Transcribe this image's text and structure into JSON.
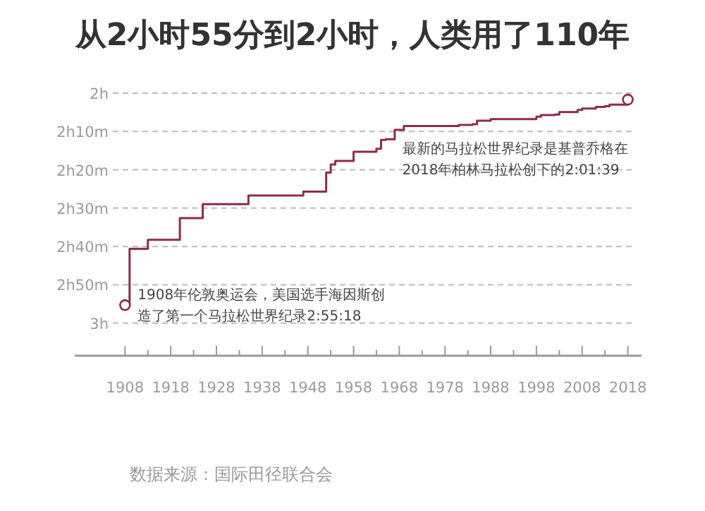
{
  "chart_data": {
    "type": "step",
    "title": "从2小时55分到2小时，人类用了110年",
    "x": [
      1908,
      1909,
      1913,
      1920,
      1925,
      1935,
      1947,
      1952,
      1953,
      1954,
      1958,
      1960,
      1963,
      1964,
      1965,
      1967,
      1969,
      1981,
      1984,
      1985,
      1988,
      1998,
      1999,
      2002,
      2003,
      2007,
      2008,
      2011,
      2013,
      2014,
      2018
    ],
    "series": [
      {
        "color": "#8c2d4a",
        "values": [
          2.922,
          2.677,
          2.638,
          2.543,
          2.483,
          2.445,
          2.428,
          2.345,
          2.31,
          2.295,
          2.255,
          2.255,
          2.242,
          2.203,
          2.2,
          2.16,
          2.143,
          2.138,
          2.135,
          2.12,
          2.113,
          2.102,
          2.095,
          2.093,
          2.082,
          2.073,
          2.067,
          2.06,
          2.057,
          2.05,
          2.028
        ]
      }
    ],
    "xlim": [
      1897,
      2021
    ],
    "xticks": [
      1908,
      {
        "value": 1913,
        "label": null
      },
      1918,
      {
        "value": 1923,
        "label": null
      },
      1928,
      {
        "value": 1933,
        "label": null
      },
      1938,
      {
        "value": 1943,
        "label": null
      },
      1948,
      {
        "value": 1953,
        "label": null
      },
      1958,
      {
        "value": 1963,
        "label": null
      },
      1968,
      {
        "value": 1973,
        "label": null
      },
      1978,
      {
        "value": 1983,
        "label": null
      },
      1988,
      {
        "value": 1993,
        "label": null
      },
      1998,
      {
        "value": 2003,
        "label": null
      },
      2008,
      {
        "value": 2013,
        "label": null
      },
      2018
    ],
    "ylim": [
      3.142,
      2
    ],
    "yticks": [
      {
        "value": 2,
        "label": "2h"
      },
      {
        "value": 2.1667,
        "label": "2h10m"
      },
      {
        "value": 2.3333,
        "label": "2h20m"
      },
      {
        "value": 2.5,
        "label": "2h30m"
      },
      {
        "value": 2.6667,
        "label": "2h40m"
      },
      {
        "value": 2.8333,
        "label": "2h50m"
      },
      {
        "value": 3,
        "label": "3h"
      }
    ],
    "grid": "y",
    "annotations": [
      {
        "text": "1908年伦敦奥运会，美国选手海因斯创造了第一个马拉松世界纪录2:55:18",
        "x": 1908,
        "y": 2.922
      },
      {
        "text": "最新的马拉松世界纪录是基普乔格在2018年柏林马拉松创下的2:01:39",
        "x": 2018,
        "y": 2.028
      },
      "数据来源：国际田径联合会"
    ]
  }
}
